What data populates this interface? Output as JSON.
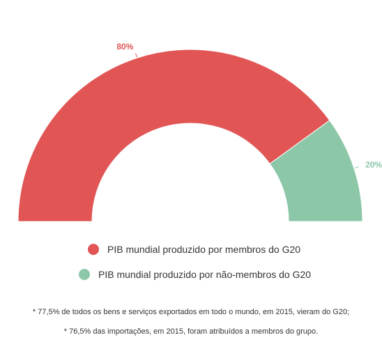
{
  "chart_data": {
    "type": "pie",
    "style": "semicircle-donut",
    "slices": [
      {
        "label": "PIB mundial produzido por membros do G20",
        "value": 80,
        "value_label": "80%",
        "color": "#e15555"
      },
      {
        "label": "PIB mundial produzido por não-membros do G20",
        "value": 20,
        "value_label": "20%",
        "color": "#8cc7a8"
      }
    ],
    "legend_placement": "bottom"
  },
  "notes": [
    "* 77,5% de todos os bens e serviços exportados em todo o mundo, em 2015, vieram do G20;",
    "* 76,5% das importações, em 2015, foram atribuídos a membros do grupo."
  ]
}
